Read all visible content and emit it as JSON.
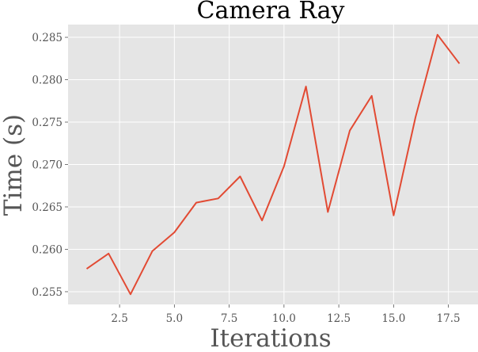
{
  "chart_data": {
    "type": "line",
    "title": "Camera Ray",
    "xlabel": "Iterations",
    "ylabel": "Time (s)",
    "xlim": [
      0.15,
      18.85
    ],
    "ylim": [
      0.2535,
      0.2865
    ],
    "xticks": [
      2.5,
      5.0,
      7.5,
      10.0,
      12.5,
      15.0,
      17.5
    ],
    "xtick_labels": [
      "2.5",
      "5.0",
      "7.5",
      "10.0",
      "12.5",
      "15.0",
      "17.5"
    ],
    "yticks": [
      0.255,
      0.26,
      0.265,
      0.27,
      0.275,
      0.28,
      0.285
    ],
    "ytick_labels": [
      "0.255",
      "0.260",
      "0.265",
      "0.270",
      "0.275",
      "0.280",
      "0.285"
    ],
    "grid": true,
    "colors": {
      "background": "#e5e5e5",
      "grid": "#ffffff",
      "line": "#e24a33"
    },
    "series": [
      {
        "x": [
          1,
          2,
          3,
          4,
          5,
          6,
          7,
          8,
          9,
          10,
          11,
          12,
          13,
          14,
          15,
          16,
          17,
          18
        ],
        "values": [
          0.2577,
          0.2595,
          0.2547,
          0.2598,
          0.262,
          0.2655,
          0.266,
          0.2686,
          0.2634,
          0.2698,
          0.2792,
          0.2644,
          0.274,
          0.2781,
          0.264,
          0.2756,
          0.2853,
          0.2819
        ]
      }
    ]
  }
}
